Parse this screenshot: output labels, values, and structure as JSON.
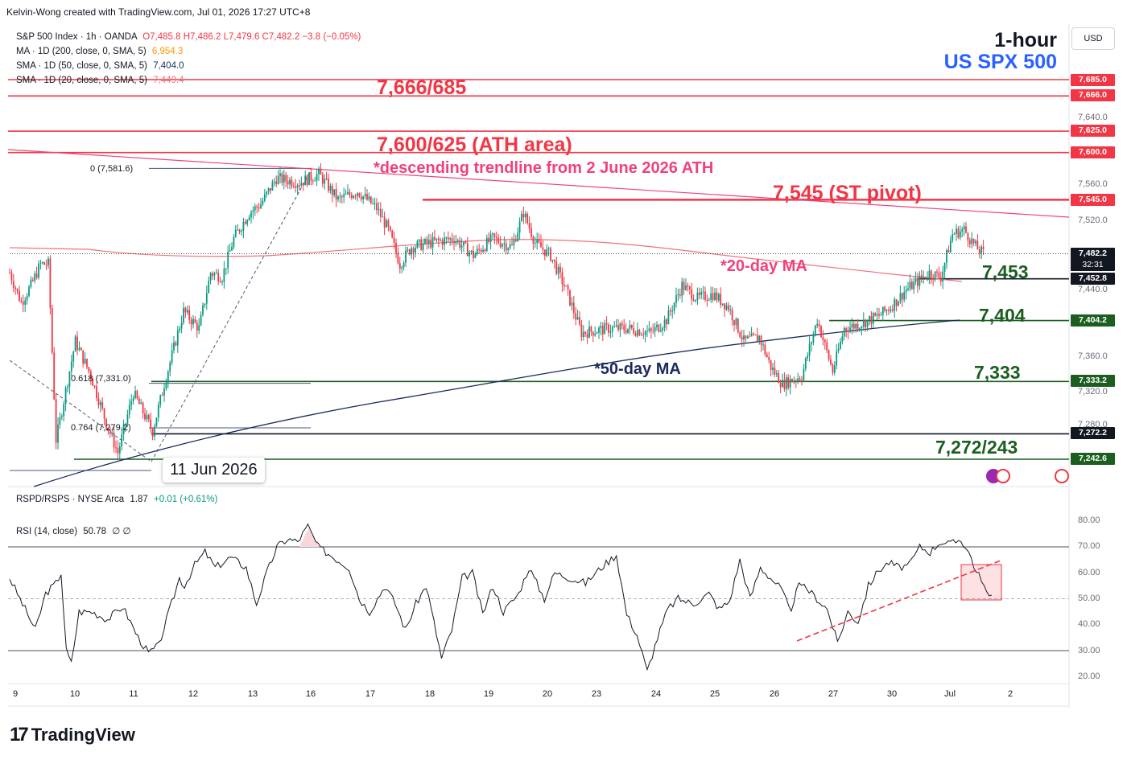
{
  "header": {
    "credit": "Kelvin-Wong created with TradingView.com, Jul 01, 2026 17:27 UTC+8"
  },
  "legend": {
    "symbol": "S&P 500 Index · 1h · OANDA",
    "ohlc": "O7,485.8  H7,486.2  L7,479.6  C7,482.2  −3.8 (−0.05%)",
    "ma200_label": "MA · 1D (200, close, 0, SMA, 5)",
    "ma200_value": "6,954.3",
    "sma50_label": "SMA · 1D (50, close, 0, SMA, 5)",
    "sma50_value": "7,404.0",
    "sma20_label": "SMA · 1D (20, close, 0, SMA, 5)",
    "sma20_value": "7,449.4",
    "rspd_label": "RSPD/RSPS · NYSE Arca",
    "rspd_value": "1.87",
    "rspd_change": "+0.01 (+0.61%)",
    "rsi_label": "RSI (14, close)",
    "rsi_value": "50.78",
    "rsi_extra": "∅  ∅"
  },
  "title": {
    "line1": "1-hour",
    "line2": "US SPX 500"
  },
  "annotations": {
    "r1": "7,666/685",
    "r2": "7,600/625 (ATH area)",
    "trend": "*descending trendline from 2 June 2026 ATH",
    "pivot": "7,545 (ST pivot)",
    "ma20": "*20-day MA",
    "ma50": "*50-day MA",
    "s1": "7,453",
    "s2": "7,404",
    "s3": "7,333",
    "s4": "7,272/243",
    "date_box": "11 Jun 2026"
  },
  "fib": {
    "f0": "0 (7,581.6)",
    "f618": "0.618 (7,331.0)",
    "f764": "0.764 (7,279.2)"
  },
  "axis": {
    "currency": "USD",
    "price_ticks": [
      "7,640.0",
      "7,560.0",
      "7,520.0",
      "7,440.0",
      "7,360.0",
      "7,320.0",
      "7,280.0"
    ],
    "price_tags": {
      "t7685": "7,685.0",
      "t7666": "7,666.0",
      "t7625": "7,625.0",
      "t7600": "7,600.0",
      "t7545": "7,545.0",
      "last": "7,482.2",
      "countdown": "32:31",
      "t7452": "7,452.8",
      "t7404": "7,404.2",
      "t7333": "7,333.2",
      "t7272": "7,272.2",
      "t7242": "7,242.6"
    },
    "rsi_ticks": [
      "80.00",
      "70.00",
      "60.00",
      "50.00",
      "40.00",
      "30.00",
      "20.00"
    ],
    "dates": [
      "9",
      "10",
      "11",
      "12",
      "13",
      "16",
      "17",
      "18",
      "19",
      "20",
      "23",
      "24",
      "25",
      "26",
      "27",
      "30",
      "Jul",
      "2"
    ]
  },
  "colors": {
    "resistance": "#f23645",
    "support": "#1b5e20",
    "ma20": "#f0717b",
    "ma50": "#1a2b5c",
    "trendline": "#f0417b",
    "up": "#089981",
    "down": "#f23645",
    "tag_red": "#f23645",
    "tag_green": "#1b5e20",
    "tag_dark": "#131722",
    "title_blue": "#2962ff"
  },
  "brand": {
    "logo_text": "TradingView"
  },
  "chart_data": [
    {
      "type": "candlestick",
      "title": "S&P 500 Index · 1h · OANDA",
      "ylim": [
        7232,
        7700
      ],
      "x_ticks": [
        "9",
        "10",
        "11",
        "12",
        "13",
        "16",
        "17",
        "18",
        "19",
        "20",
        "23",
        "24",
        "25",
        "26",
        "27",
        "30",
        "Jul",
        "2"
      ],
      "anchors": [
        [
          0,
          7460
        ],
        [
          6,
          7425
        ],
        [
          11,
          7445
        ],
        [
          16,
          7470
        ],
        [
          20,
          7470
        ],
        [
          24,
          7265
        ],
        [
          34,
          7380
        ],
        [
          42,
          7340
        ],
        [
          50,
          7285
        ],
        [
          56,
          7250
        ],
        [
          64,
          7320
        ],
        [
          74,
          7275
        ],
        [
          80,
          7330
        ],
        [
          90,
          7415
        ],
        [
          98,
          7395
        ],
        [
          104,
          7460
        ],
        [
          110,
          7455
        ],
        [
          116,
          7500
        ],
        [
          124,
          7530
        ],
        [
          130,
          7540
        ],
        [
          138,
          7570
        ],
        [
          150,
          7565
        ],
        [
          160,
          7575
        ],
        [
          170,
          7545
        ],
        [
          180,
          7555
        ],
        [
          190,
          7535
        ],
        [
          196,
          7510
        ],
        [
          202,
          7470
        ],
        [
          208,
          7490
        ],
        [
          218,
          7495
        ],
        [
          230,
          7500
        ],
        [
          240,
          7480
        ],
        [
          250,
          7500
        ],
        [
          260,
          7490
        ],
        [
          266,
          7530
        ],
        [
          272,
          7495
        ],
        [
          280,
          7480
        ],
        [
          288,
          7440
        ],
        [
          296,
          7390
        ],
        [
          310,
          7395
        ],
        [
          320,
          7395
        ],
        [
          332,
          7390
        ],
        [
          340,
          7405
        ],
        [
          348,
          7445
        ],
        [
          356,
          7430
        ],
        [
          364,
          7435
        ],
        [
          372,
          7420
        ],
        [
          380,
          7380
        ],
        [
          388,
          7385
        ],
        [
          394,
          7350
        ],
        [
          400,
          7330
        ],
        [
          410,
          7340
        ],
        [
          418,
          7405
        ],
        [
          426,
          7345
        ],
        [
          432,
          7395
        ],
        [
          440,
          7400
        ],
        [
          450,
          7410
        ],
        [
          456,
          7420
        ],
        [
          464,
          7440
        ],
        [
          470,
          7450
        ],
        [
          476,
          7460
        ],
        [
          482,
          7455
        ],
        [
          488,
          7505
        ],
        [
          494,
          7510
        ],
        [
          500,
          7490
        ],
        [
          504,
          7482
        ]
      ],
      "moving_averages": [
        {
          "name": "SMA · 1D (20, close, 0, SMA, 5)",
          "last": 7449.4
        },
        {
          "name": "SMA · 1D (50, close, 0, SMA, 5)",
          "last": 7404.0
        }
      ],
      "levels": [
        7685,
        7666,
        7625,
        7600,
        7545,
        7452.8,
        7404.2,
        7333.2,
        7272.2,
        7242.6
      ],
      "fib_levels": [
        [
          "0",
          7581.6
        ],
        [
          "0.618",
          7331.0
        ],
        [
          "0.764",
          7279.2
        ]
      ]
    },
    {
      "type": "line",
      "title": "RSI (14, close)",
      "ylim": [
        20,
        80
      ],
      "bands": [
        30,
        50,
        70
      ],
      "anchors": [
        [
          0,
          58
        ],
        [
          5,
          48
        ],
        [
          10,
          38
        ],
        [
          14,
          52
        ],
        [
          18,
          56
        ],
        [
          20,
          60
        ],
        [
          22,
          30
        ],
        [
          24,
          25
        ],
        [
          27,
          45
        ],
        [
          32,
          45
        ],
        [
          38,
          42
        ],
        [
          44,
          47
        ],
        [
          50,
          35
        ],
        [
          54,
          29
        ],
        [
          58,
          32
        ],
        [
          62,
          45
        ],
        [
          66,
          58
        ],
        [
          68,
          55
        ],
        [
          72,
          63
        ],
        [
          76,
          68
        ],
        [
          80,
          62
        ],
        [
          86,
          66
        ],
        [
          92,
          62
        ],
        [
          96,
          48
        ],
        [
          100,
          60
        ],
        [
          104,
          70
        ],
        [
          108,
          73
        ],
        [
          112,
          72
        ],
        [
          116,
          78
        ],
        [
          120,
          70
        ],
        [
          126,
          66
        ],
        [
          132,
          62
        ],
        [
          136,
          50
        ],
        [
          140,
          45
        ],
        [
          146,
          55
        ],
        [
          150,
          48
        ],
        [
          154,
          38
        ],
        [
          158,
          48
        ],
        [
          162,
          55
        ],
        [
          168,
          27
        ],
        [
          172,
          38
        ],
        [
          176,
          58
        ],
        [
          180,
          60
        ],
        [
          184,
          44
        ],
        [
          188,
          55
        ],
        [
          192,
          45
        ],
        [
          198,
          52
        ],
        [
          202,
          62
        ],
        [
          208,
          50
        ],
        [
          212,
          60
        ],
        [
          218,
          58
        ],
        [
          224,
          56
        ],
        [
          230,
          62
        ],
        [
          236,
          67
        ],
        [
          240,
          44
        ],
        [
          244,
          36
        ],
        [
          248,
          22
        ],
        [
          252,
          35
        ],
        [
          256,
          46
        ],
        [
          260,
          50
        ],
        [
          266,
          48
        ],
        [
          272,
          52
        ],
        [
          276,
          46
        ],
        [
          280,
          49
        ],
        [
          284,
          65
        ],
        [
          288,
          50
        ],
        [
          292,
          62
        ],
        [
          296,
          58
        ],
        [
          300,
          54
        ],
        [
          304,
          44
        ],
        [
          306,
          55
        ],
        [
          310,
          54
        ],
        [
          314,
          50
        ],
        [
          318,
          46
        ],
        [
          322,
          33
        ],
        [
          326,
          45
        ],
        [
          330,
          41
        ],
        [
          334,
          55
        ],
        [
          338,
          61
        ],
        [
          342,
          64
        ],
        [
          346,
          62
        ],
        [
          350,
          63
        ],
        [
          354,
          70
        ],
        [
          358,
          68
        ],
        [
          362,
          72
        ],
        [
          366,
          71
        ],
        [
          370,
          73
        ],
        [
          374,
          66
        ],
        [
          376,
          60
        ],
        [
          378,
          58
        ],
        [
          380,
          52
        ],
        [
          382,
          50
        ]
      ],
      "last": 50.78
    }
  ]
}
